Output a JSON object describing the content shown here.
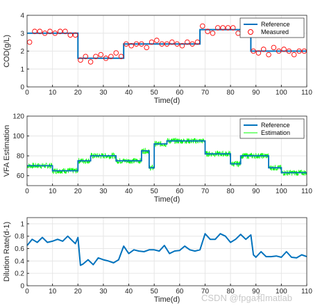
{
  "watermark": "CSDN @fpga和matlab",
  "colors": {
    "reference": "#0072BD",
    "measured": "#FF0000",
    "estimation": "#00FF00",
    "dilution": "#0072BD"
  },
  "chart_data": [
    {
      "type": "line",
      "xlabel": "Time(d)",
      "ylabel": "COD(g/L)",
      "xlim": [
        0,
        110
      ],
      "ylim": [
        0,
        4
      ],
      "xticks": [
        "0",
        "10",
        "20",
        "30",
        "40",
        "50",
        "60",
        "70",
        "80",
        "90",
        "100",
        "110"
      ],
      "yticks": [
        "0",
        "1",
        "2",
        "3",
        "4"
      ],
      "grid": true,
      "legend": {
        "position": "top-right",
        "entries": [
          "Reference",
          "Measured"
        ]
      },
      "series": [
        {
          "name": "Reference",
          "steps": [
            {
              "x": [
                0,
                20
              ],
              "y": 3.0
            },
            {
              "x": [
                20,
                38
              ],
              "y": 1.6
            },
            {
              "x": [
                38,
                68
              ],
              "y": 2.4
            },
            {
              "x": [
                68,
                88
              ],
              "y": 3.2
            },
            {
              "x": [
                88,
                110
              ],
              "y": 2.0
            }
          ]
        },
        {
          "name": "Measured",
          "x": [
            1,
            3,
            5,
            7,
            9,
            11,
            13,
            15,
            17,
            19,
            21,
            23,
            25,
            27,
            29,
            31,
            33,
            35,
            37,
            39,
            41,
            43,
            45,
            47,
            49,
            51,
            53,
            55,
            57,
            59,
            61,
            63,
            65,
            67,
            69,
            71,
            73,
            75,
            77,
            79,
            81,
            83,
            85,
            87,
            89,
            91,
            93,
            95,
            97,
            99,
            101,
            103,
            105,
            107,
            109
          ],
          "y": [
            2.5,
            3.1,
            3.1,
            3.0,
            3.1,
            3.0,
            3.1,
            3.1,
            2.9,
            2.9,
            1.5,
            1.7,
            1.4,
            1.7,
            1.8,
            1.6,
            1.7,
            1.9,
            1.7,
            2.4,
            2.3,
            2.4,
            2.4,
            2.2,
            2.5,
            2.6,
            2.4,
            2.4,
            2.5,
            2.4,
            2.3,
            2.5,
            2.4,
            2.5,
            3.4,
            3.1,
            3.0,
            3.3,
            3.3,
            3.3,
            3.3,
            3.0,
            3.3,
            2.9,
            2.0,
            1.9,
            2.1,
            1.8,
            2.2,
            2.0,
            2.1,
            2.0,
            1.8,
            2.0,
            2.0
          ]
        }
      ]
    },
    {
      "type": "line",
      "xlabel": "Time(d)",
      "ylabel": "VFA Estimation",
      "xlim": [
        0,
        110
      ],
      "ylim": [
        50,
        120
      ],
      "xticks": [
        "0",
        "10",
        "20",
        "30",
        "40",
        "50",
        "60",
        "70",
        "80",
        "90",
        "100",
        "110"
      ],
      "yticks": [
        "60",
        "80",
        "100",
        "120"
      ],
      "grid": true,
      "legend": {
        "position": "top-right",
        "entries": [
          "Reference",
          "Estimation"
        ]
      },
      "series": [
        {
          "name": "Reference",
          "steps": [
            {
              "x": [
                0,
                10
              ],
              "y": 70
            },
            {
              "x": [
                10,
                20
              ],
              "y": 65
            },
            {
              "x": [
                20,
                25
              ],
              "y": 75
            },
            {
              "x": [
                25,
                35
              ],
              "y": 80
            },
            {
              "x": [
                35,
                45
              ],
              "y": 75
            },
            {
              "x": [
                45,
                48
              ],
              "y": 85
            },
            {
              "x": [
                48,
                50
              ],
              "y": 68
            },
            {
              "x": [
                50,
                55
              ],
              "y": 92
            },
            {
              "x": [
                55,
                70
              ],
              "y": 95
            },
            {
              "x": [
                70,
                80
              ],
              "y": 82
            },
            {
              "x": [
                80,
                84
              ],
              "y": 72
            },
            {
              "x": [
                84,
                95
              ],
              "y": 80
            },
            {
              "x": [
                95,
                100
              ],
              "y": 68
            },
            {
              "x": [
                100,
                110
              ],
              "y": 63
            }
          ]
        },
        {
          "name": "Estimation",
          "noise_amplitude": 3
        }
      ]
    },
    {
      "type": "line",
      "xlabel": "Time(d)",
      "ylabel": "Dilution Rate(d-1)",
      "xlim": [
        0,
        110
      ],
      "ylim": [
        0,
        1.1
      ],
      "xticks": [
        "0",
        "10",
        "20",
        "30",
        "40",
        "50",
        "60",
        "70",
        "80",
        "90",
        "100",
        "110"
      ],
      "yticks": [
        "0",
        "0.2",
        "0.4",
        "0.6",
        "0.8",
        "1"
      ],
      "grid": true,
      "series": [
        {
          "name": "",
          "x": [
            0,
            2,
            4,
            6,
            8,
            10,
            12,
            14,
            16,
            18,
            19,
            20,
            21,
            22,
            24,
            26,
            28,
            30,
            32,
            34,
            36,
            38,
            40,
            42,
            44,
            46,
            48,
            50,
            52,
            54,
            56,
            58,
            60,
            62,
            64,
            66,
            68,
            70,
            72,
            74,
            76,
            78,
            80,
            82,
            84,
            86,
            88,
            89,
            90,
            92,
            94,
            96,
            98,
            100,
            102,
            104,
            106,
            108,
            110
          ],
          "y": [
            0.65,
            0.75,
            0.7,
            0.78,
            0.7,
            0.72,
            0.75,
            0.72,
            0.8,
            0.72,
            0.68,
            0.78,
            0.33,
            0.35,
            0.42,
            0.34,
            0.45,
            0.42,
            0.4,
            0.37,
            0.42,
            0.64,
            0.52,
            0.58,
            0.56,
            0.55,
            0.58,
            0.58,
            0.56,
            0.65,
            0.52,
            0.56,
            0.57,
            0.64,
            0.58,
            0.56,
            0.58,
            0.84,
            0.75,
            0.75,
            0.84,
            0.8,
            0.7,
            0.75,
            0.83,
            0.75,
            0.82,
            0.5,
            0.46,
            0.55,
            0.47,
            0.47,
            0.48,
            0.46,
            0.55,
            0.46,
            0.45,
            0.5,
            0.47
          ]
        }
      ]
    }
  ]
}
